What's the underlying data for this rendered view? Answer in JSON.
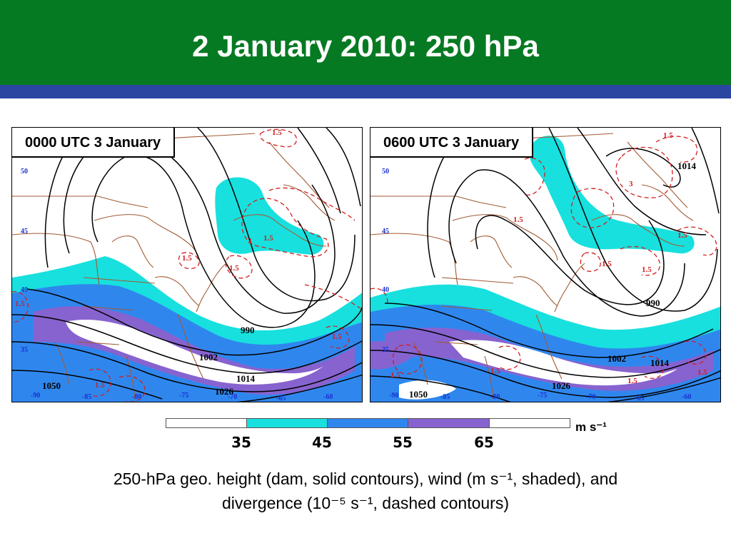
{
  "slide": {
    "title": "2 January 2010: 250 hPa"
  },
  "colors": {
    "title_bar": "#067a22",
    "stripe": "#2b46a1",
    "wind_35_45": "#18e0de",
    "wind_45_55": "#2f87ee",
    "wind_55_65": "#8763cf",
    "divergence": "#d21e1e",
    "height_contours": "#000000",
    "map_outlines": "#a25a34"
  },
  "panels": [
    {
      "label": "0000 UTC 3 January",
      "height_labels": [
        "990",
        "1002",
        "1014",
        "1026",
        "1050"
      ],
      "divergence_labels": [
        "1.5",
        "1.5",
        "1.5",
        "1.5",
        "1.5",
        "1.5",
        "1.5",
        "3"
      ],
      "lat_labels": [
        "50",
        "45",
        "40",
        "35"
      ],
      "lon_labels": [
        "-90",
        "-85",
        "-80",
        "-75",
        "-70",
        "-65",
        "-60"
      ]
    },
    {
      "label": "0600 UTC 3 January",
      "height_labels": [
        "1014",
        "990",
        "1002",
        "1014",
        "1026",
        "1050"
      ],
      "divergence_labels": [
        "1.5",
        "3",
        "1.5",
        "1.5",
        "1.5",
        "1.5",
        "1.5",
        "1.5",
        "1.5",
        "1.5"
      ],
      "lat_labels": [
        "50",
        "45",
        "40",
        "35"
      ],
      "lon_labels": [
        "-90",
        "-85",
        "-80",
        "-75",
        "-70",
        "-65",
        "-60"
      ]
    }
  ],
  "colorbar": {
    "ticks": [
      "35",
      "45",
      "55",
      "65"
    ],
    "units": "m s⁻¹",
    "bins": [
      {
        "range": "<35",
        "color": "#ffffff"
      },
      {
        "range": "35–45",
        "color": "#18e0de"
      },
      {
        "range": "45–55",
        "color": "#2f87ee"
      },
      {
        "range": "55–65",
        "color": "#8763cf"
      },
      {
        "range": ">65",
        "color": "#ffffff"
      }
    ]
  },
  "caption": {
    "line1": "250-hPa geo. height (dam, solid contours), wind (m s⁻¹, shaded), and",
    "line2": "divergence (10⁻⁵ s⁻¹, dashed contours)"
  }
}
